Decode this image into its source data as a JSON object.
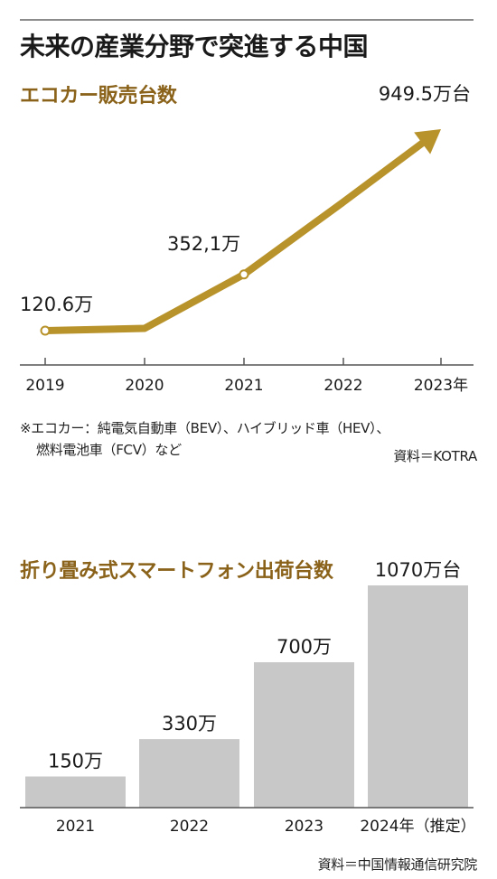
{
  "header": {
    "title": "未来の産業分野で突進する中国"
  },
  "chart_data": [
    {
      "type": "line",
      "title": "エコカー販売台数",
      "x": [
        "2019",
        "2020",
        "2021",
        "2022",
        "2023年"
      ],
      "series": [
        {
          "values": [
            120.6,
            130,
            352.1,
            650,
            949.5
          ]
        }
      ],
      "data_labels": [
        {
          "index": 0,
          "text": "120.6万"
        },
        {
          "index": 2,
          "text": "352,1万"
        },
        {
          "index": 4,
          "text": "949.5万台"
        }
      ],
      "ylim": [
        0,
        1000
      ],
      "grid": false,
      "color": "#b8922a",
      "note_lines": [
        "※エコカー：純電気自動車（BEV）、ハイブリッド車（HEV）、",
        "燃料電池車（FCV）など"
      ],
      "source": "資料＝KOTRA"
    },
    {
      "type": "bar",
      "title": "折り畳み式スマートフォン出荷台数",
      "categories": [
        "2021",
        "2022",
        "2023",
        "2024年（推定）"
      ],
      "values": [
        150,
        330,
        700,
        1070
      ],
      "data_labels": [
        "150万",
        "330万",
        "700万",
        "1070万台"
      ],
      "ylim": [
        0,
        1100
      ],
      "grid": false,
      "color": "#c8c8c8",
      "source": "資料＝中国情報通信研究院"
    }
  ]
}
